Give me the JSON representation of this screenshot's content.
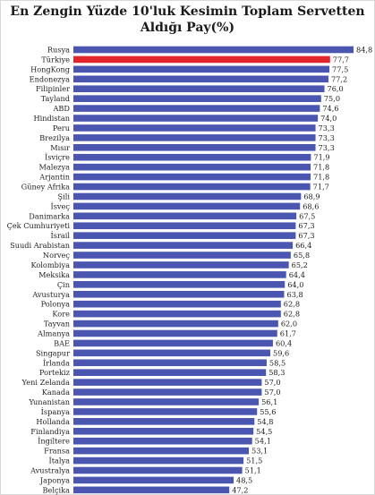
{
  "chart_data": {
    "type": "bar",
    "orientation": "horizontal",
    "title": [
      "En Zengin Yüzde 10'luk Kesimin Toplam Servetten",
      "Aldığı Pay(%)"
    ],
    "categories": [
      "Rusya",
      "Türkiye",
      "HongKong",
      "Endonezya",
      "Filipinler",
      "Tayland",
      "ABD",
      "Hindistan",
      "Peru",
      "Brezilya",
      "Mısır",
      "İsviçre",
      "Malezya",
      "Arjantin",
      "Güney Afrika",
      "Şili",
      "İsveç",
      "Danimarka",
      "Çek Cumhuriyeti",
      "İsrail",
      "Suudi Arabistan",
      "Norveç",
      "Kolombiya",
      "Meksika",
      "Çin",
      "Avusturya",
      "Polonya",
      "Kore",
      "Tayvan",
      "Almanya",
      "BAE",
      "Singapur",
      "İrlanda",
      "Portekiz",
      "Yeni Zelanda",
      "Kanada",
      "Yunanistan",
      "İspanya",
      "Hollanda",
      "Finlandiya",
      "İngiltere",
      "Fransa",
      "İtalya",
      "Avustralya",
      "Japonya",
      "Belçika"
    ],
    "values": [
      84.8,
      77.7,
      77.5,
      77.2,
      76.0,
      75.0,
      74.6,
      74.0,
      73.3,
      73.3,
      73.3,
      71.9,
      71.8,
      71.8,
      71.7,
      68.9,
      68.6,
      67.5,
      67.3,
      67.3,
      66.4,
      65.8,
      65.2,
      64.4,
      64.0,
      63.8,
      62.8,
      62.8,
      62.0,
      61.7,
      60.4,
      59.6,
      58.5,
      58.3,
      57.0,
      57.0,
      56.1,
      55.6,
      54.8,
      54.5,
      54.1,
      53.1,
      51.5,
      51.1,
      48.5,
      47.2
    ],
    "value_labels": [
      "84,8",
      "77,7",
      "77,5",
      "77,2",
      "76,0",
      "75,0",
      "74,6",
      "74,0",
      "73,3",
      "73,3",
      "73,3",
      "71,9",
      "71,8",
      "71,8",
      "71,7",
      "68,9",
      "68,6",
      "67,5",
      "67,3",
      "67,3",
      "66,4",
      "65,8",
      "65,2",
      "64,4",
      "64,0",
      "63,8",
      "62,8",
      "62,8",
      "62,0",
      "61,7",
      "60,4",
      "59,6",
      "58,5",
      "58,3",
      "57,0",
      "57,0",
      "56,1",
      "55,6",
      "54,8",
      "54,5",
      "54,1",
      "53,1",
      "51,5",
      "51,1",
      "48,5",
      "47,2"
    ],
    "highlight": "Türkiye",
    "colors": {
      "bar": "#4a56b0",
      "highlight": "#e0262b",
      "label": "#222222"
    },
    "xlim": [
      0,
      84.8
    ],
    "grid": false,
    "legend": "none"
  }
}
